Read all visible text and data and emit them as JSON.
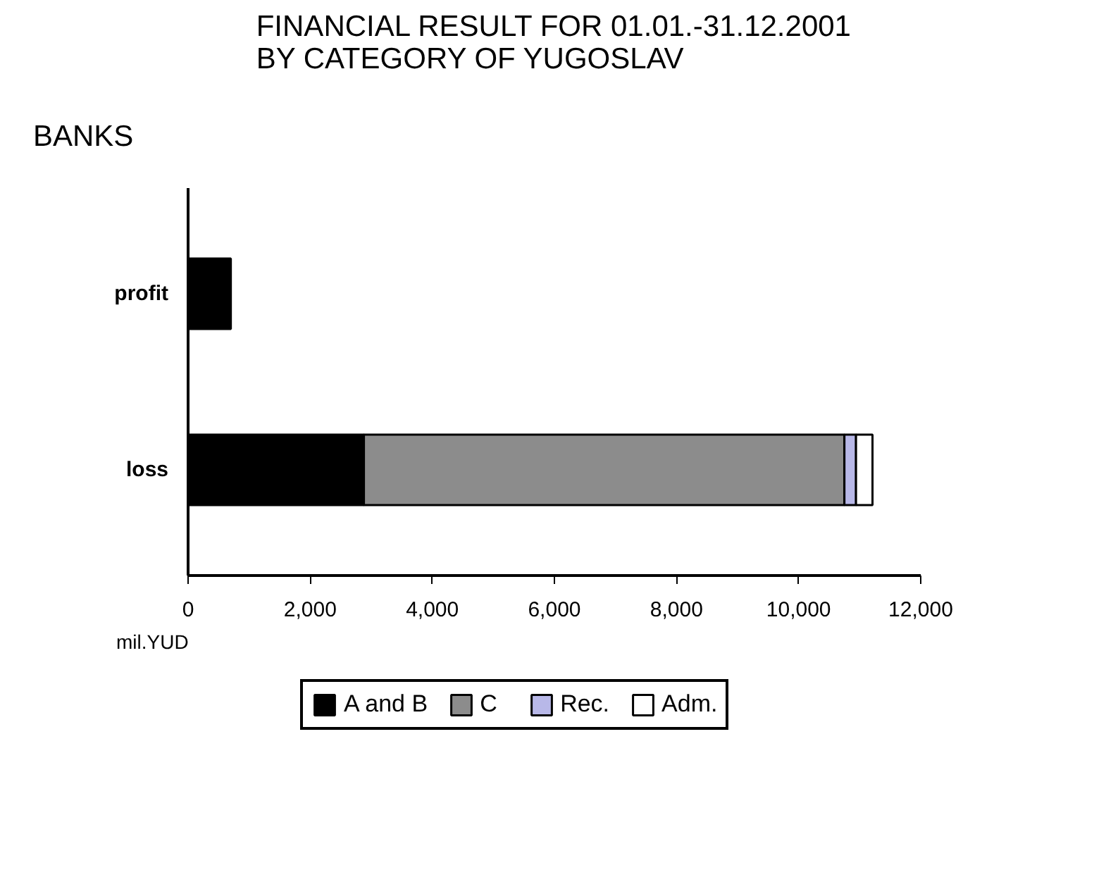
{
  "chart_data": {
    "type": "bar",
    "orientation": "horizontal",
    "stacked": true,
    "title": "FINANCIAL RESULT FOR 01.01.-31.12.2001\nBY CATEGORY OF YUGOSLAV",
    "subtitle": "BANKS",
    "xlabel": "mil.YUD",
    "categories": [
      "profit",
      "loss"
    ],
    "series": [
      {
        "name": "A and B",
        "color": "#000000",
        "values": [
          700,
          2880
        ]
      },
      {
        "name": "C",
        "color": "#8c8c8c",
        "values": [
          null,
          7870
        ]
      },
      {
        "name": "Rec.",
        "color": "#b8b8e8",
        "values": [
          null,
          190
        ]
      },
      {
        "name": "Adm.",
        "color": "#ffffff",
        "values": [
          null,
          270
        ]
      }
    ],
    "xlim": [
      0,
      12000
    ],
    "xticks": [
      {
        "value": 0,
        "label": "0"
      },
      {
        "value": 2000,
        "label": "2,000"
      },
      {
        "value": 4000,
        "label": "4,000"
      },
      {
        "value": 6000,
        "label": "6,000"
      },
      {
        "value": 8000,
        "label": "8,000"
      },
      {
        "value": 10000,
        "label": "10,000"
      },
      {
        "value": 12000,
        "label": "12,000"
      }
    ],
    "grid": false,
    "legend": "bottom"
  }
}
